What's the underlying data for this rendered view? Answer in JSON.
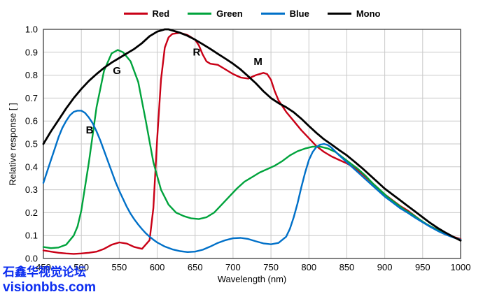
{
  "watermark": {
    "line1": "石鑫华视觉论坛",
    "line2": "visionbbs.com",
    "color": "#0a2cf0"
  },
  "chart_data": {
    "type": "line",
    "title": "",
    "xlabel": "Wavelength (nm)",
    "ylabel": "Relative response [ ]",
    "xlim": [
      450,
      1000
    ],
    "ylim": [
      0,
      1.0
    ],
    "x_ticks": [
      450,
      500,
      550,
      600,
      650,
      700,
      750,
      800,
      850,
      900,
      950,
      1000
    ],
    "y_ticks": [
      0,
      0.1,
      0.2,
      0.3,
      0.4,
      0.5,
      0.6,
      0.7,
      0.8,
      0.9,
      1.0
    ],
    "grid": true,
    "grid_color": "#c9c9c9",
    "border_color": "#3f3f3f",
    "legend_position": "top",
    "annotations": [
      {
        "text": "B",
        "x": 511,
        "y": 0.545
      },
      {
        "text": "G",
        "x": 547,
        "y": 0.805
      },
      {
        "text": "R",
        "x": 652,
        "y": 0.885
      },
      {
        "text": "M",
        "x": 733,
        "y": 0.845
      }
    ],
    "series": [
      {
        "name": "Red",
        "color": "#c90016",
        "width": 2.4,
        "points": [
          [
            450,
            0.035
          ],
          [
            460,
            0.03
          ],
          [
            470,
            0.025
          ],
          [
            480,
            0.022
          ],
          [
            490,
            0.02
          ],
          [
            500,
            0.022
          ],
          [
            510,
            0.025
          ],
          [
            520,
            0.03
          ],
          [
            530,
            0.042
          ],
          [
            540,
            0.06
          ],
          [
            550,
            0.07
          ],
          [
            560,
            0.065
          ],
          [
            570,
            0.05
          ],
          [
            580,
            0.042
          ],
          [
            590,
            0.08
          ],
          [
            595,
            0.22
          ],
          [
            600,
            0.52
          ],
          [
            605,
            0.78
          ],
          [
            610,
            0.92
          ],
          [
            615,
            0.965
          ],
          [
            620,
            0.98
          ],
          [
            630,
            0.985
          ],
          [
            640,
            0.975
          ],
          [
            650,
            0.955
          ],
          [
            655,
            0.93
          ],
          [
            660,
            0.89
          ],
          [
            665,
            0.86
          ],
          [
            670,
            0.85
          ],
          [
            680,
            0.845
          ],
          [
            690,
            0.825
          ],
          [
            700,
            0.805
          ],
          [
            710,
            0.79
          ],
          [
            720,
            0.785
          ],
          [
            730,
            0.8
          ],
          [
            740,
            0.81
          ],
          [
            745,
            0.805
          ],
          [
            750,
            0.78
          ],
          [
            755,
            0.73
          ],
          [
            760,
            0.69
          ],
          [
            770,
            0.64
          ],
          [
            780,
            0.6
          ],
          [
            790,
            0.56
          ],
          [
            800,
            0.525
          ],
          [
            810,
            0.49
          ],
          [
            820,
            0.465
          ],
          [
            830,
            0.445
          ],
          [
            840,
            0.43
          ],
          [
            850,
            0.415
          ],
          [
            860,
            0.395
          ],
          [
            870,
            0.37
          ],
          [
            880,
            0.34
          ],
          [
            890,
            0.31
          ],
          [
            900,
            0.28
          ],
          [
            910,
            0.255
          ],
          [
            920,
            0.23
          ],
          [
            930,
            0.21
          ],
          [
            940,
            0.185
          ],
          [
            950,
            0.16
          ],
          [
            960,
            0.14
          ],
          [
            970,
            0.125
          ],
          [
            980,
            0.11
          ],
          [
            990,
            0.095
          ],
          [
            1000,
            0.085
          ]
        ]
      },
      {
        "name": "Green",
        "color": "#00a33c",
        "width": 2.4,
        "points": [
          [
            450,
            0.05
          ],
          [
            460,
            0.045
          ],
          [
            470,
            0.048
          ],
          [
            480,
            0.06
          ],
          [
            490,
            0.1
          ],
          [
            495,
            0.14
          ],
          [
            500,
            0.21
          ],
          [
            510,
            0.42
          ],
          [
            520,
            0.66
          ],
          [
            530,
            0.82
          ],
          [
            540,
            0.895
          ],
          [
            548,
            0.91
          ],
          [
            555,
            0.9
          ],
          [
            565,
            0.86
          ],
          [
            575,
            0.77
          ],
          [
            585,
            0.6
          ],
          [
            595,
            0.42
          ],
          [
            605,
            0.3
          ],
          [
            615,
            0.235
          ],
          [
            625,
            0.2
          ],
          [
            635,
            0.185
          ],
          [
            645,
            0.175
          ],
          [
            655,
            0.172
          ],
          [
            665,
            0.18
          ],
          [
            675,
            0.2
          ],
          [
            685,
            0.235
          ],
          [
            695,
            0.27
          ],
          [
            705,
            0.305
          ],
          [
            715,
            0.335
          ],
          [
            725,
            0.355
          ],
          [
            735,
            0.375
          ],
          [
            745,
            0.39
          ],
          [
            755,
            0.405
          ],
          [
            765,
            0.425
          ],
          [
            775,
            0.45
          ],
          [
            785,
            0.468
          ],
          [
            795,
            0.48
          ],
          [
            805,
            0.488
          ],
          [
            815,
            0.488
          ],
          [
            825,
            0.48
          ],
          [
            835,
            0.465
          ],
          [
            845,
            0.44
          ],
          [
            855,
            0.415
          ],
          [
            865,
            0.39
          ],
          [
            875,
            0.36
          ],
          [
            885,
            0.325
          ],
          [
            895,
            0.295
          ],
          [
            905,
            0.265
          ],
          [
            915,
            0.24
          ],
          [
            925,
            0.215
          ],
          [
            935,
            0.195
          ],
          [
            945,
            0.172
          ],
          [
            955,
            0.15
          ],
          [
            965,
            0.132
          ],
          [
            975,
            0.115
          ],
          [
            985,
            0.1
          ],
          [
            1000,
            0.082
          ]
        ]
      },
      {
        "name": "Blue",
        "color": "#0070c8",
        "width": 2.4,
        "points": [
          [
            450,
            0.33
          ],
          [
            455,
            0.38
          ],
          [
            460,
            0.43
          ],
          [
            465,
            0.48
          ],
          [
            470,
            0.53
          ],
          [
            475,
            0.57
          ],
          [
            480,
            0.6
          ],
          [
            485,
            0.625
          ],
          [
            490,
            0.64
          ],
          [
            495,
            0.645
          ],
          [
            500,
            0.645
          ],
          [
            505,
            0.635
          ],
          [
            510,
            0.615
          ],
          [
            515,
            0.59
          ],
          [
            520,
            0.555
          ],
          [
            525,
            0.515
          ],
          [
            530,
            0.47
          ],
          [
            535,
            0.425
          ],
          [
            540,
            0.38
          ],
          [
            545,
            0.335
          ],
          [
            550,
            0.295
          ],
          [
            555,
            0.26
          ],
          [
            560,
            0.225
          ],
          [
            565,
            0.195
          ],
          [
            570,
            0.17
          ],
          [
            575,
            0.148
          ],
          [
            580,
            0.128
          ],
          [
            585,
            0.11
          ],
          [
            590,
            0.095
          ],
          [
            595,
            0.082
          ],
          [
            600,
            0.07
          ],
          [
            610,
            0.052
          ],
          [
            620,
            0.04
          ],
          [
            630,
            0.032
          ],
          [
            640,
            0.028
          ],
          [
            650,
            0.03
          ],
          [
            660,
            0.038
          ],
          [
            670,
            0.052
          ],
          [
            680,
            0.068
          ],
          [
            690,
            0.08
          ],
          [
            700,
            0.088
          ],
          [
            710,
            0.09
          ],
          [
            720,
            0.085
          ],
          [
            730,
            0.075
          ],
          [
            740,
            0.066
          ],
          [
            750,
            0.062
          ],
          [
            760,
            0.068
          ],
          [
            770,
            0.095
          ],
          [
            775,
            0.13
          ],
          [
            780,
            0.18
          ],
          [
            785,
            0.24
          ],
          [
            790,
            0.31
          ],
          [
            795,
            0.375
          ],
          [
            800,
            0.43
          ],
          [
            805,
            0.465
          ],
          [
            810,
            0.487
          ],
          [
            815,
            0.497
          ],
          [
            820,
            0.5
          ],
          [
            825,
            0.495
          ],
          [
            830,
            0.483
          ],
          [
            840,
            0.45
          ],
          [
            850,
            0.42
          ],
          [
            860,
            0.39
          ],
          [
            870,
            0.36
          ],
          [
            880,
            0.33
          ],
          [
            890,
            0.3
          ],
          [
            900,
            0.27
          ],
          [
            910,
            0.245
          ],
          [
            920,
            0.22
          ],
          [
            930,
            0.2
          ],
          [
            940,
            0.178
          ],
          [
            950,
            0.158
          ],
          [
            960,
            0.138
          ],
          [
            970,
            0.12
          ],
          [
            980,
            0.105
          ],
          [
            990,
            0.092
          ],
          [
            1000,
            0.082
          ]
        ]
      },
      {
        "name": "Mono",
        "color": "#000000",
        "width": 2.8,
        "points": [
          [
            450,
            0.5
          ],
          [
            460,
            0.555
          ],
          [
            470,
            0.605
          ],
          [
            480,
            0.655
          ],
          [
            490,
            0.7
          ],
          [
            500,
            0.74
          ],
          [
            510,
            0.775
          ],
          [
            520,
            0.805
          ],
          [
            530,
            0.832
          ],
          [
            540,
            0.855
          ],
          [
            550,
            0.875
          ],
          [
            560,
            0.895
          ],
          [
            570,
            0.915
          ],
          [
            580,
            0.94
          ],
          [
            590,
            0.97
          ],
          [
            600,
            0.99
          ],
          [
            610,
            1.0
          ],
          [
            615,
            1.0
          ],
          [
            620,
            0.995
          ],
          [
            630,
            0.985
          ],
          [
            640,
            0.972
          ],
          [
            650,
            0.955
          ],
          [
            660,
            0.935
          ],
          [
            670,
            0.915
          ],
          [
            680,
            0.893
          ],
          [
            690,
            0.872
          ],
          [
            700,
            0.85
          ],
          [
            710,
            0.825
          ],
          [
            720,
            0.795
          ],
          [
            730,
            0.765
          ],
          [
            740,
            0.73
          ],
          [
            750,
            0.7
          ],
          [
            760,
            0.678
          ],
          [
            770,
            0.66
          ],
          [
            780,
            0.638
          ],
          [
            790,
            0.61
          ],
          [
            800,
            0.578
          ],
          [
            810,
            0.548
          ],
          [
            820,
            0.52
          ],
          [
            830,
            0.497
          ],
          [
            840,
            0.473
          ],
          [
            850,
            0.45
          ],
          [
            860,
            0.423
          ],
          [
            870,
            0.395
          ],
          [
            880,
            0.365
          ],
          [
            890,
            0.335
          ],
          [
            900,
            0.305
          ],
          [
            910,
            0.28
          ],
          [
            920,
            0.255
          ],
          [
            930,
            0.23
          ],
          [
            940,
            0.205
          ],
          [
            950,
            0.18
          ],
          [
            960,
            0.155
          ],
          [
            970,
            0.133
          ],
          [
            980,
            0.113
          ],
          [
            990,
            0.095
          ],
          [
            1000,
            0.078
          ]
        ]
      }
    ]
  }
}
